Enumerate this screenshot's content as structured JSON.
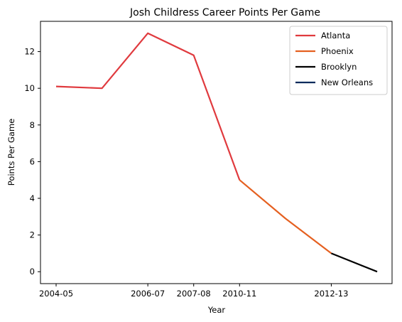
{
  "chart_data": {
    "type": "line",
    "title": "Josh Childress Career Points Per Game",
    "xlabel": "Year",
    "ylabel": "Points Per Game",
    "x": [
      "2004-05",
      "2005-06",
      "2006-07",
      "2007-08",
      "2010-11",
      "2011-12",
      "2012-13",
      "2013-14"
    ],
    "x_ticks": [
      "2004-05",
      "2006-07",
      "2007-08",
      "2010-11",
      "2012-13"
    ],
    "y_ticks": [
      0,
      2,
      4,
      6,
      8,
      10,
      12
    ],
    "ylim": [
      -0.65,
      13.65
    ],
    "grid": false,
    "legend_position": "top-right",
    "series": [
      {
        "name": "Atlanta",
        "color": "#e03a3e",
        "points": [
          [
            "2004-05",
            10.1
          ],
          [
            "2005-06",
            10.0
          ],
          [
            "2006-07",
            13.0
          ],
          [
            "2007-08",
            11.8
          ],
          [
            "2010-11",
            5.0
          ]
        ]
      },
      {
        "name": "Phoenix",
        "color": "#e56020",
        "points": [
          [
            "2010-11",
            5.0
          ],
          [
            "2011-12",
            2.9
          ],
          [
            "2012-13",
            1.0
          ]
        ]
      },
      {
        "name": "Brooklyn",
        "color": "#000000",
        "points": [
          [
            "2012-13",
            1.0
          ],
          [
            "2013-14",
            0.0
          ]
        ]
      },
      {
        "name": "New Orleans",
        "color": "#002b5c",
        "points": []
      }
    ]
  }
}
